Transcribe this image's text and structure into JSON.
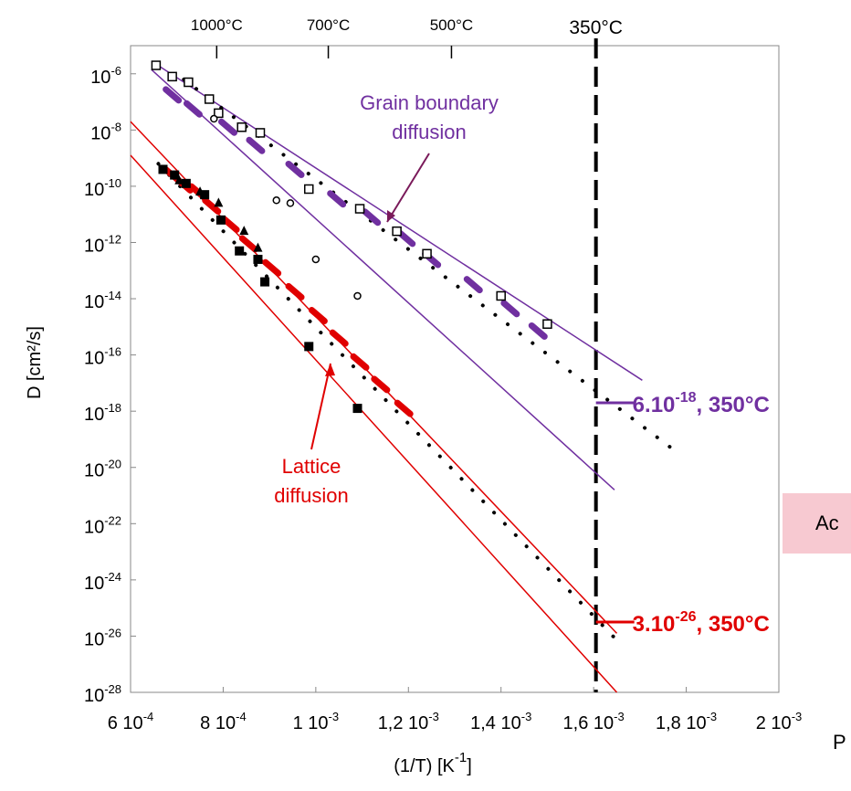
{
  "chart_data": {
    "type": "scatter",
    "xlabel": "(1/T) [K",
    "xlabel_sup": "-1",
    "xlabel_close": "]",
    "ylabel": "D [cm²/s]",
    "x_log": false,
    "y_log": true,
    "xlim": [
      0.0006,
      0.002
    ],
    "ylim": [
      1e-28,
      1e-05
    ],
    "x_ticks": [
      {
        "value": 0.0006,
        "mant": "6 10",
        "exp": "-4"
      },
      {
        "value": 0.0008,
        "mant": "8 10",
        "exp": "-4"
      },
      {
        "value": 0.001,
        "mant": "1 10",
        "exp": "-3"
      },
      {
        "value": 0.0012,
        "mant": "1,2 10",
        "exp": "-3"
      },
      {
        "value": 0.0014,
        "mant": "1,4 10",
        "exp": "-3"
      },
      {
        "value": 0.0016,
        "mant": "1,6 10",
        "exp": "-3"
      },
      {
        "value": 0.0018,
        "mant": "1,8 10",
        "exp": "-3"
      },
      {
        "value": 0.002,
        "mant": "2 10",
        "exp": "-3"
      }
    ],
    "y_ticks": [
      {
        "value": -6,
        "exp": "-6"
      },
      {
        "value": -8,
        "exp": "-8"
      },
      {
        "value": -10,
        "exp": "-10"
      },
      {
        "value": -12,
        "exp": "-12"
      },
      {
        "value": -14,
        "exp": "-14"
      },
      {
        "value": -16,
        "exp": "-16"
      },
      {
        "value": -18,
        "exp": "-18"
      },
      {
        "value": -20,
        "exp": "-20"
      },
      {
        "value": -22,
        "exp": "-22"
      },
      {
        "value": -24,
        "exp": "-24"
      },
      {
        "value": -26,
        "exp": "-26"
      },
      {
        "value": -28,
        "exp": "-28"
      }
    ],
    "y_tick_base": "10",
    "top_ticks": [
      {
        "x": 0.000786,
        "label": "1000°C"
      },
      {
        "x": 0.001027,
        "label": "700°C"
      },
      {
        "x": 0.001293,
        "label": "500°C"
      }
    ],
    "vline": {
      "x": 0.001605,
      "label": "350°C"
    },
    "series": [
      {
        "name": "Grain boundary diffusion",
        "color": "#7030a0",
        "label_lines": [
          "Grain boundary",
          "diffusion"
        ],
        "upper_bound": [
          [
            0.000645,
            -5.55
          ],
          [
            0.001705,
            -16.9
          ]
        ],
        "lower_bound": [
          [
            0.000645,
            -5.85
          ],
          [
            0.001645,
            -20.8
          ]
        ],
        "fit_dotted": [
          [
            0.000715,
            -6.2
          ],
          [
            0.001775,
            -19.4
          ]
        ],
        "thick_segments": [
          [
            0.00069,
            -6.75
          ],
          [
            0.000735,
            -7.25
          ],
          [
            0.00081,
            -7.9
          ],
          [
            0.00087,
            -8.55
          ],
          [
            0.000955,
            -9.4
          ],
          [
            0.001045,
            -10.45
          ],
          [
            0.00112,
            -11.1
          ],
          [
            0.001195,
            -11.85
          ],
          [
            0.00125,
            -12.6
          ],
          [
            0.00134,
            -13.5
          ],
          [
            0.00142,
            -14.35
          ],
          [
            0.00148,
            -15.15
          ]
        ],
        "open_square_points": [
          [
            0.000655,
            -5.7
          ],
          [
            0.00069,
            -6.1
          ],
          [
            0.000725,
            -6.3
          ],
          [
            0.00077,
            -6.9
          ],
          [
            0.00079,
            -7.4
          ],
          [
            0.00084,
            -7.9
          ],
          [
            0.00088,
            -8.1
          ],
          [
            0.000985,
            -10.1
          ],
          [
            0.001095,
            -10.8
          ],
          [
            0.001175,
            -11.6
          ],
          [
            0.00124,
            -12.4
          ],
          [
            0.0014,
            -13.9
          ],
          [
            0.0015,
            -14.9
          ]
        ],
        "open_circle_points": [
          [
            0.00078,
            -7.6
          ],
          [
            0.000915,
            -10.5
          ],
          [
            0.000945,
            -10.6
          ],
          [
            0.001,
            -12.6
          ],
          [
            0.00109,
            -13.9
          ]
        ],
        "annotation": {
          "x": 0.001605,
          "log10": -17.7,
          "mant": "6.10",
          "exp": "-18",
          "suffix": ", 350°C"
        }
      },
      {
        "name": "Lattice diffusion",
        "color": "#e00000",
        "label_lines": [
          "Lattice",
          "diffusion"
        ],
        "upper_bound": [
          [
            0.0006,
            -7.7
          ],
          [
            0.00165,
            -25.9
          ]
        ],
        "lower_bound": [
          [
            0.0006,
            -8.9
          ],
          [
            0.00165,
            -28.0
          ]
        ],
        "fit_dotted": [
          [
            0.00066,
            -9.2
          ],
          [
            0.001665,
            -26.4
          ]
        ],
        "thick_segments": [
          [
            0.00069,
            -9.6
          ],
          [
            0.000715,
            -9.95
          ],
          [
            0.000745,
            -10.2
          ],
          [
            0.000775,
            -10.7
          ],
          [
            0.000815,
            -11.35
          ],
          [
            0.000855,
            -12.05
          ],
          [
            0.000905,
            -12.9
          ],
          [
            0.000955,
            -13.75
          ],
          [
            0.001005,
            -14.6
          ],
          [
            0.00105,
            -15.4
          ],
          [
            0.001095,
            -16.25
          ],
          [
            0.00114,
            -17.05
          ],
          [
            0.00119,
            -17.9
          ]
        ],
        "filled_square_points": [
          [
            0.00067,
            -9.4
          ],
          [
            0.000695,
            -9.6
          ],
          [
            0.00072,
            -9.9
          ],
          [
            0.00076,
            -10.3
          ],
          [
            0.000795,
            -11.2
          ],
          [
            0.000835,
            -12.3
          ],
          [
            0.000875,
            -12.6
          ],
          [
            0.00089,
            -13.4
          ],
          [
            0.000985,
            -15.7
          ],
          [
            0.00109,
            -17.9
          ]
        ],
        "filled_triangle_points": [
          [
            0.000705,
            -9.8
          ],
          [
            0.00075,
            -10.2
          ],
          [
            0.00079,
            -10.6
          ],
          [
            0.000845,
            -11.6
          ],
          [
            0.000875,
            -12.2
          ]
        ],
        "annotation": {
          "x": 0.001605,
          "log10": -25.5,
          "mant": "3.10",
          "exp": "-26",
          "suffix": ", 350°C"
        }
      }
    ]
  },
  "overlay": {
    "box_text": "Ac",
    "bottom_right_text": "P"
  }
}
